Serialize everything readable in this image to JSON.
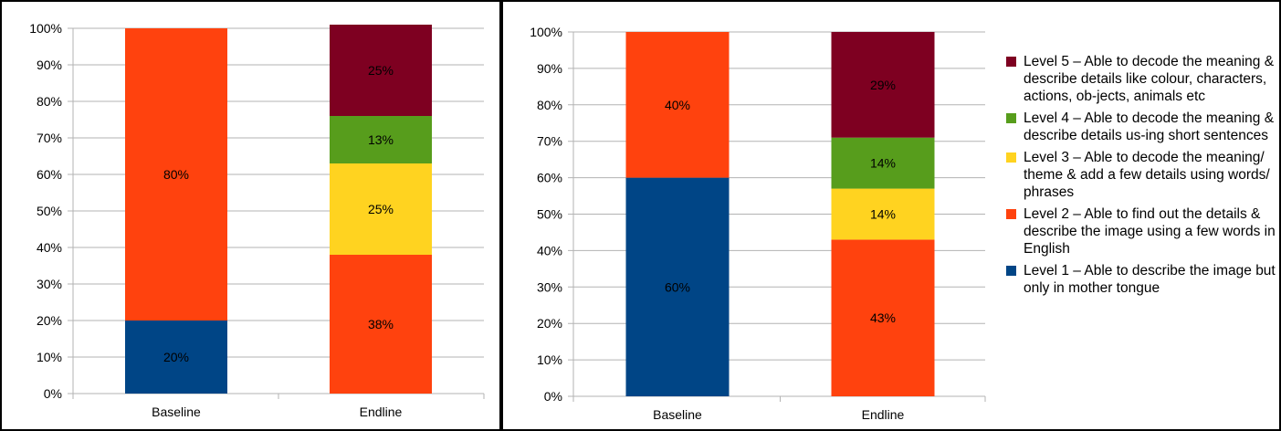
{
  "colors": {
    "level1": "#004586",
    "level2": "#ff420e",
    "level3": "#ffd320",
    "level4": "#579d1c",
    "level5": "#7e0021"
  },
  "legend": [
    {
      "key": "level5",
      "color": "#7e0021",
      "text": "Level 5 – Able to decode the meaning & describe details like colour, characters, actions, ob-jects, animals etc"
    },
    {
      "key": "level4",
      "color": "#579d1c",
      "text": "Level 4 – Able to decode the meaning & describe details us-ing short sentences"
    },
    {
      "key": "level3",
      "color": "#ffd320",
      "text": "Level 3 – Able to decode the meaning/ theme & add a few details using words/ phrases"
    },
    {
      "key": "level2",
      "color": "#ff420e",
      "text": "Level 2 – Able to find out the details & describe the image using a few words in English"
    },
    {
      "key": "level1",
      "color": "#004586",
      "text": "Level 1 – Able to describe the image but only in mother tongue"
    }
  ],
  "chart_data": [
    {
      "type": "bar",
      "stacked": true,
      "percent": true,
      "categories": [
        "Baseline",
        "Endline"
      ],
      "ylim": [
        0,
        100
      ],
      "yticks": [
        "0%",
        "10%",
        "20%",
        "30%",
        "40%",
        "50%",
        "60%",
        "70%",
        "80%",
        "90%",
        "100%"
      ],
      "grid": true,
      "series": [
        {
          "key": "level1",
          "values": [
            20,
            0
          ],
          "labels": [
            "20%",
            ""
          ]
        },
        {
          "key": "level2",
          "values": [
            80,
            38
          ],
          "labels": [
            "80%",
            "38%"
          ]
        },
        {
          "key": "level3",
          "values": [
            0,
            25
          ],
          "labels": [
            "",
            "25%"
          ]
        },
        {
          "key": "level4",
          "values": [
            0,
            13
          ],
          "labels": [
            "",
            "13%"
          ]
        },
        {
          "key": "level5",
          "values": [
            0,
            25
          ],
          "labels": [
            "",
            "25%"
          ]
        }
      ]
    },
    {
      "type": "bar",
      "stacked": true,
      "percent": true,
      "categories": [
        "Baseline",
        "Endline"
      ],
      "ylim": [
        0,
        100
      ],
      "yticks": [
        "0%",
        "10%",
        "20%",
        "30%",
        "40%",
        "50%",
        "60%",
        "70%",
        "80%",
        "90%",
        "100%"
      ],
      "grid": true,
      "legend_position": "right",
      "series": [
        {
          "key": "level1",
          "values": [
            60,
            0
          ],
          "labels": [
            "60%",
            ""
          ]
        },
        {
          "key": "level2",
          "values": [
            40,
            43
          ],
          "labels": [
            "40%",
            "43%"
          ]
        },
        {
          "key": "level3",
          "values": [
            0,
            14
          ],
          "labels": [
            "",
            "14%"
          ]
        },
        {
          "key": "level4",
          "values": [
            0,
            14
          ],
          "labels": [
            "",
            "14%"
          ]
        },
        {
          "key": "level5",
          "values": [
            0,
            29
          ],
          "labels": [
            "",
            "29%"
          ]
        }
      ]
    }
  ]
}
